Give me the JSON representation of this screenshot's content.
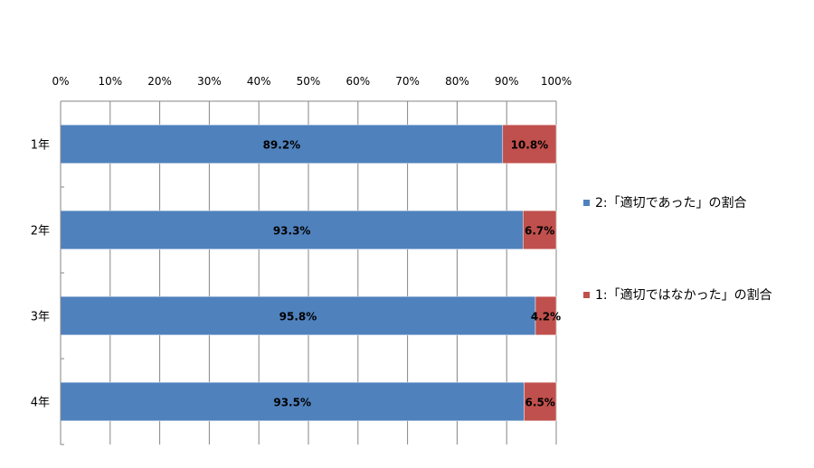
{
  "chart_data": {
    "type": "bar",
    "orientation": "horizontal",
    "stacked": "percent",
    "categories": [
      "1年",
      "2年",
      "3年",
      "4年"
    ],
    "series": [
      {
        "name": "2:「適切であった」の割合",
        "color": "#4f81bd",
        "values": [
          89.2,
          93.3,
          95.8,
          93.5
        ],
        "labels": [
          "89.2%",
          "93.3%",
          "95.8%",
          "93.5%"
        ]
      },
      {
        "name": "1:「適切ではなかった」の割合",
        "color": "#c0504d",
        "values": [
          10.8,
          6.7,
          4.2,
          6.5
        ],
        "labels": [
          "10.8%",
          "6.7%",
          "4.2%",
          "6.5%"
        ]
      }
    ],
    "xlim": [
      0,
      100
    ],
    "x_ticks": [
      "0%",
      "10%",
      "20%",
      "30%",
      "40%",
      "50%",
      "60%",
      "70%",
      "80%",
      "90%",
      "100%"
    ],
    "x_axis_position": "top",
    "grid": true,
    "legend_position": "right"
  }
}
